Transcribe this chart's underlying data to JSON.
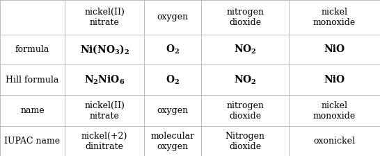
{
  "col_headers": [
    "nickel(II)\nnitrate",
    "oxygen",
    "nitrogen\ndioxide",
    "nickel\nmonoxide"
  ],
  "row_headers": [
    "formula",
    "Hill formula",
    "name",
    "IUPAC name"
  ],
  "formula_row": [
    "$\\mathregular{Ni(NO_3)_2}$",
    "$\\mathregular{O_2}$",
    "$\\mathregular{NO_2}$",
    "NiO"
  ],
  "hill_row": [
    "$\\mathregular{N_2NiO_6}$",
    "$\\mathregular{O_2}$",
    "$\\mathregular{NO_2}$",
    "NiO"
  ],
  "name_row": [
    "nickel(II)\nnitrate",
    "oxygen",
    "nitrogen\ndioxide",
    "nickel\nmonoxide"
  ],
  "iupac_row": [
    "nickel(+2)\ndinitrate",
    "molecular\noxygen",
    "Nitrogen\ndioxide",
    "oxonickel"
  ],
  "bg_color": "#ffffff",
  "line_color": "#bbbbbb",
  "text_color": "#000000",
  "font_size": 9
}
